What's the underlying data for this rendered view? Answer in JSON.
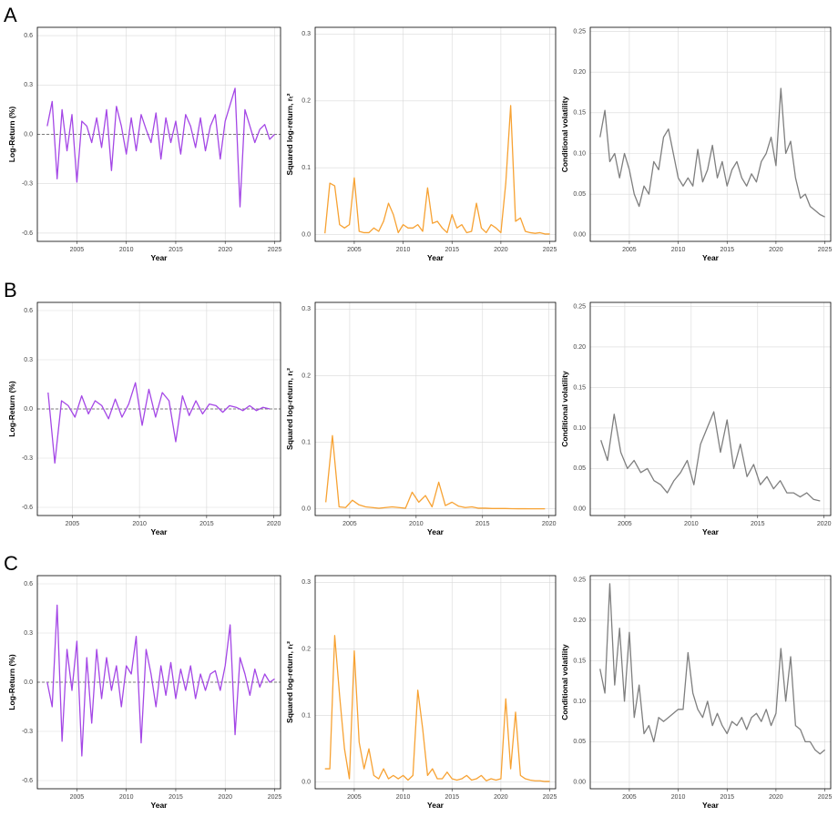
{
  "row_labels": [
    "A",
    "B",
    "C"
  ],
  "chart_data": [
    {
      "type": "line",
      "x_label": "Year",
      "y_label": "Log-Return (%)",
      "reference_line": 0,
      "grid": true,
      "xlim": [
        2001,
        2025.6
      ],
      "xticks": [
        2005,
        2010,
        2015,
        2020,
        2025
      ],
      "ylim": [
        -0.65,
        0.65
      ],
      "yticks": [
        -0.6,
        -0.3,
        {
          "value": 0,
          "label": "0.0"
        },
        0.3,
        0.6
      ],
      "x": [
        2002,
        2002.5,
        2003,
        2003.5,
        2004,
        2004.5,
        2005,
        2005.5,
        2006,
        2006.5,
        2007,
        2007.5,
        2008,
        2008.5,
        2009,
        2009.5,
        2010,
        2010.5,
        2011,
        2011.5,
        2012,
        2012.5,
        2013,
        2013.5,
        2014,
        2014.5,
        2015,
        2015.5,
        2016,
        2016.5,
        2017,
        2017.5,
        2018,
        2018.5,
        2019,
        2019.5,
        2020,
        2020.5,
        2021,
        2021.5,
        2022,
        2022.5,
        2023,
        2023.5,
        2024,
        2024.5,
        2025
      ],
      "series": [
        {
          "color": "#a447e6",
          "values": [
            0.05,
            0.2,
            -0.27,
            0.15,
            -0.1,
            0.12,
            -0.29,
            0.08,
            0.05,
            -0.05,
            0.1,
            -0.08,
            0.15,
            -0.22,
            0.17,
            0.05,
            -0.12,
            0.1,
            -0.1,
            0.12,
            0.03,
            -0.05,
            0.13,
            -0.15,
            0.1,
            -0.05,
            0.08,
            -0.12,
            0.12,
            0.05,
            -0.08,
            0.1,
            -0.1,
            0.05,
            0.12,
            -0.15,
            0.08,
            0.18,
            0.28,
            -0.44,
            0.15,
            0.05,
            -0.05,
            0.03,
            0.06,
            -0.03,
            0
          ]
        }
      ]
    },
    {
      "type": "line",
      "x_label": "Year",
      "y_label": "Squared log-return, rₜ²",
      "grid": true,
      "xlim": [
        2001,
        2025.6
      ],
      "xticks": [
        2005,
        2010,
        2015,
        2020,
        2025
      ],
      "ylim": [
        -0.01,
        0.31
      ],
      "yticks": [
        {
          "value": 0,
          "label": "0.0"
        },
        0.1,
        0.2,
        0.3
      ],
      "x": [
        2002,
        2002.5,
        2003,
        2003.5,
        2004,
        2004.5,
        2005,
        2005.5,
        2006,
        2006.5,
        2007,
        2007.5,
        2008,
        2008.5,
        2009,
        2009.5,
        2010,
        2010.5,
        2011,
        2011.5,
        2012,
        2012.5,
        2013,
        2013.5,
        2014,
        2014.5,
        2015,
        2015.5,
        2016,
        2016.5,
        2017,
        2017.5,
        2018,
        2018.5,
        2019,
        2019.5,
        2020,
        2020.5,
        2021,
        2021.5,
        2022,
        2022.5,
        2023,
        2023.5,
        2024,
        2024.5,
        2025
      ],
      "series": [
        {
          "color": "#f7a233",
          "values": [
            0.002,
            0.077,
            0.073,
            0.015,
            0.01,
            0.015,
            0.085,
            0.005,
            0.003,
            0.003,
            0.01,
            0.005,
            0.02,
            0.047,
            0.03,
            0.003,
            0.015,
            0.01,
            0.01,
            0.015,
            0.005,
            0.07,
            0.017,
            0.02,
            0.01,
            0.003,
            0.03,
            0.01,
            0.015,
            0.003,
            0.005,
            0.047,
            0.01,
            0.003,
            0.015,
            0.01,
            0.003,
            0.077,
            0.193,
            0.02,
            0.025,
            0.005,
            0.003,
            0.002,
            0.003,
            0.001,
            0.001
          ]
        }
      ]
    },
    {
      "type": "line",
      "x_label": "Year",
      "y_label": "Conditional volatility",
      "grid": true,
      "xlim": [
        2001,
        2025.6
      ],
      "xticks": [
        2005,
        2010,
        2015,
        2020,
        2025
      ],
      "ylim": [
        -0.008,
        0.255
      ],
      "yticks": [
        {
          "value": 0,
          "label": "0.00"
        },
        0.05,
        {
          "value": 0.1,
          "label": "0.10"
        },
        0.15,
        {
          "value": 0.2,
          "label": "0.20"
        },
        0.25
      ],
      "x": [
        2002,
        2002.5,
        2003,
        2003.5,
        2004,
        2004.5,
        2005,
        2005.5,
        2006,
        2006.5,
        2007,
        2007.5,
        2008,
        2008.5,
        2009,
        2009.5,
        2010,
        2010.5,
        2011,
        2011.5,
        2012,
        2012.5,
        2013,
        2013.5,
        2014,
        2014.5,
        2015,
        2015.5,
        2016,
        2016.5,
        2017,
        2017.5,
        2018,
        2018.5,
        2019,
        2019.5,
        2020,
        2020.5,
        2021,
        2021.5,
        2022,
        2022.5,
        2023,
        2023.5,
        2024,
        2024.5,
        2025
      ],
      "series": [
        {
          "color": "#7f7f7f",
          "values": [
            0.12,
            0.153,
            0.09,
            0.1,
            0.07,
            0.1,
            0.08,
            0.05,
            0.035,
            0.06,
            0.05,
            0.09,
            0.08,
            0.12,
            0.13,
            0.1,
            0.07,
            0.06,
            0.07,
            0.06,
            0.105,
            0.065,
            0.08,
            0.11,
            0.07,
            0.09,
            0.06,
            0.08,
            0.09,
            0.07,
            0.06,
            0.075,
            0.065,
            0.09,
            0.1,
            0.12,
            0.085,
            0.18,
            0.1,
            0.115,
            0.07,
            0.045,
            0.05,
            0.035,
            0.03,
            0.025,
            0.022
          ]
        }
      ]
    },
    {
      "type": "line",
      "x_label": "Year",
      "y_label": "Log-Return (%)",
      "reference_line": 0,
      "grid": true,
      "xlim": [
        2002.4,
        2020.5
      ],
      "xticks": [
        2005,
        2010,
        2015,
        2020
      ],
      "ylim": [
        -0.65,
        0.65
      ],
      "yticks": [
        -0.6,
        -0.3,
        {
          "value": 0,
          "label": "0.0"
        },
        0.3,
        0.6
      ],
      "x": [
        2003.2,
        2003.7,
        2004.2,
        2004.7,
        2005.2,
        2005.7,
        2006.2,
        2006.7,
        2007.2,
        2007.7,
        2008.2,
        2008.7,
        2009.2,
        2009.7,
        2010.2,
        2010.7,
        2011.2,
        2011.7,
        2012.2,
        2012.7,
        2013.2,
        2013.7,
        2014.2,
        2014.7,
        2015.2,
        2015.7,
        2016.2,
        2016.7,
        2017.2,
        2017.7,
        2018.2,
        2018.7,
        2019.2,
        2019.7
      ],
      "series": [
        {
          "color": "#a447e6",
          "values": [
            0.1,
            -0.33,
            0.05,
            0.02,
            -0.05,
            0.08,
            -0.03,
            0.05,
            0.02,
            -0.06,
            0.06,
            -0.05,
            0.03,
            0.16,
            -0.1,
            0.12,
            -0.05,
            0.1,
            0.05,
            -0.2,
            0.08,
            -0.04,
            0.05,
            -0.03,
            0.03,
            0.02,
            -0.02,
            0.02,
            0.01,
            -0.01,
            0.02,
            -0.01,
            0.01,
            0
          ]
        }
      ]
    },
    {
      "type": "line",
      "x_label": "Year",
      "y_label": "Squared log-return, rₜ²",
      "grid": true,
      "xlim": [
        2002.4,
        2020.5
      ],
      "xticks": [
        2005,
        2010,
        2015,
        2020
      ],
      "ylim": [
        -0.01,
        0.31
      ],
      "yticks": [
        {
          "value": 0,
          "label": "0.0"
        },
        0.1,
        0.2,
        0.3
      ],
      "x": [
        2003.2,
        2003.7,
        2004.2,
        2004.7,
        2005.2,
        2005.7,
        2006.2,
        2006.7,
        2007.2,
        2007.7,
        2008.2,
        2008.7,
        2009.2,
        2009.7,
        2010.2,
        2010.7,
        2011.2,
        2011.7,
        2012.2,
        2012.7,
        2013.2,
        2013.7,
        2014.2,
        2014.7,
        2015.2,
        2015.7,
        2016.2,
        2016.7,
        2017.2,
        2017.7,
        2018.2,
        2018.7,
        2019.2,
        2019.7
      ],
      "series": [
        {
          "color": "#f7a233",
          "values": [
            0.01,
            0.11,
            0.003,
            0.002,
            0.013,
            0.006,
            0.003,
            0.002,
            0.001,
            0.002,
            0.003,
            0.002,
            0.001,
            0.025,
            0.01,
            0.02,
            0.003,
            0.04,
            0.005,
            0.01,
            0.004,
            0.002,
            0.003,
            0.001,
            0.001,
            0.0005,
            0.0005,
            0.0005,
            0.0003,
            0.0002,
            0.0002,
            0.0001,
            0.0001,
            0.0001
          ]
        }
      ]
    },
    {
      "type": "line",
      "x_label": "Year",
      "y_label": "Conditional volatility",
      "grid": true,
      "xlim": [
        2002.4,
        2020.5
      ],
      "xticks": [
        2005,
        2010,
        2015,
        2020
      ],
      "ylim": [
        -0.008,
        0.255
      ],
      "yticks": [
        {
          "value": 0,
          "label": "0.00"
        },
        0.05,
        {
          "value": 0.1,
          "label": "0.10"
        },
        0.15,
        {
          "value": 0.2,
          "label": "0.20"
        },
        0.25
      ],
      "x": [
        2003.2,
        2003.7,
        2004.2,
        2004.7,
        2005.2,
        2005.7,
        2006.2,
        2006.7,
        2007.2,
        2007.7,
        2008.2,
        2008.7,
        2009.2,
        2009.7,
        2010.2,
        2010.7,
        2011.2,
        2011.7,
        2012.2,
        2012.7,
        2013.2,
        2013.7,
        2014.2,
        2014.7,
        2015.2,
        2015.7,
        2016.2,
        2016.7,
        2017.2,
        2017.7,
        2018.2,
        2018.7,
        2019.2,
        2019.7
      ],
      "series": [
        {
          "color": "#7f7f7f",
          "values": [
            0.085,
            0.06,
            0.117,
            0.07,
            0.05,
            0.06,
            0.045,
            0.05,
            0.035,
            0.03,
            0.02,
            0.035,
            0.045,
            0.06,
            0.03,
            0.08,
            0.1,
            0.12,
            0.07,
            0.11,
            0.05,
            0.08,
            0.04,
            0.055,
            0.03,
            0.04,
            0.025,
            0.035,
            0.02,
            0.02,
            0.015,
            0.02,
            0.012,
            0.01
          ]
        }
      ]
    },
    {
      "type": "line",
      "x_label": "Year",
      "y_label": "Log-Return (%)",
      "reference_line": 0,
      "grid": true,
      "xlim": [
        2001,
        2025.6
      ],
      "xticks": [
        2005,
        2010,
        2015,
        2020,
        2025
      ],
      "ylim": [
        -0.65,
        0.65
      ],
      "yticks": [
        -0.6,
        -0.3,
        {
          "value": 0,
          "label": "0.0"
        },
        0.3,
        0.6
      ],
      "x": [
        2002,
        2002.5,
        2003,
        2003.5,
        2004,
        2004.5,
        2005,
        2005.5,
        2006,
        2006.5,
        2007,
        2007.5,
        2008,
        2008.5,
        2009,
        2009.5,
        2010,
        2010.5,
        2011,
        2011.5,
        2012,
        2012.5,
        2013,
        2013.5,
        2014,
        2014.5,
        2015,
        2015.5,
        2016,
        2016.5,
        2017,
        2017.5,
        2018,
        2018.5,
        2019,
        2019.5,
        2020,
        2020.5,
        2021,
        2021.5,
        2022,
        2022.5,
        2023,
        2023.5,
        2024,
        2024.5,
        2025
      ],
      "series": [
        {
          "color": "#a447e6",
          "values": [
            0,
            -0.15,
            0.47,
            -0.36,
            0.2,
            -0.05,
            0.25,
            -0.45,
            0.15,
            -0.25,
            0.2,
            -0.1,
            0.15,
            -0.05,
            0.1,
            -0.15,
            0.1,
            0.05,
            0.28,
            -0.37,
            0.2,
            0.05,
            -0.15,
            0.1,
            -0.08,
            0.12,
            -0.1,
            0.08,
            -0.05,
            0.1,
            -0.1,
            0.05,
            -0.05,
            0.05,
            0.07,
            -0.05,
            0.1,
            0.35,
            -0.32,
            0.15,
            0.05,
            -0.08,
            0.08,
            -0.03,
            0.05,
            0,
            0.02
          ]
        }
      ]
    },
    {
      "type": "line",
      "x_label": "Year",
      "y_label": "Squared log-return, rₜ²",
      "grid": true,
      "xlim": [
        2001,
        2025.6
      ],
      "xticks": [
        2005,
        2010,
        2015,
        2020,
        2025
      ],
      "ylim": [
        -0.01,
        0.31
      ],
      "yticks": [
        {
          "value": 0,
          "label": "0.0"
        },
        0.1,
        0.2,
        0.3
      ],
      "x": [
        2002,
        2002.5,
        2003,
        2003.5,
        2004,
        2004.5,
        2005,
        2005.5,
        2006,
        2006.5,
        2007,
        2007.5,
        2008,
        2008.5,
        2009,
        2009.5,
        2010,
        2010.5,
        2011,
        2011.5,
        2012,
        2012.5,
        2013,
        2013.5,
        2014,
        2014.5,
        2015,
        2015.5,
        2016,
        2016.5,
        2017,
        2017.5,
        2018,
        2018.5,
        2019,
        2019.5,
        2020,
        2020.5,
        2021,
        2021.5,
        2022,
        2022.5,
        2023,
        2023.5,
        2024,
        2024.5,
        2025
      ],
      "series": [
        {
          "color": "#f7a233",
          "values": [
            0.02,
            0.02,
            0.22,
            0.13,
            0.05,
            0.005,
            0.197,
            0.06,
            0.02,
            0.05,
            0.01,
            0.005,
            0.02,
            0.005,
            0.01,
            0.005,
            0.01,
            0.003,
            0.01,
            0.138,
            0.08,
            0.01,
            0.02,
            0.005,
            0.005,
            0.015,
            0.005,
            0.003,
            0.005,
            0.01,
            0.003,
            0.005,
            0.01,
            0.002,
            0.005,
            0.003,
            0.005,
            0.125,
            0.02,
            0.105,
            0.01,
            0.005,
            0.003,
            0.002,
            0.002,
            0.001,
            0.001
          ]
        }
      ]
    },
    {
      "type": "line",
      "x_label": "Year",
      "y_label": "Conditional volatility",
      "grid": true,
      "xlim": [
        2001,
        2025.6
      ],
      "xticks": [
        2005,
        2010,
        2015,
        2020,
        2025
      ],
      "ylim": [
        -0.008,
        0.255
      ],
      "yticks": [
        {
          "value": 0,
          "label": "0.00"
        },
        0.05,
        {
          "value": 0.1,
          "label": "0.10"
        },
        0.15,
        {
          "value": 0.2,
          "label": "0.20"
        },
        0.25
      ],
      "x": [
        2002,
        2002.5,
        2003,
        2003.5,
        2004,
        2004.5,
        2005,
        2005.5,
        2006,
        2006.5,
        2007,
        2007.5,
        2008,
        2008.5,
        2009,
        2009.5,
        2010,
        2010.5,
        2011,
        2011.5,
        2012,
        2012.5,
        2013,
        2013.5,
        2014,
        2014.5,
        2015,
        2015.5,
        2016,
        2016.5,
        2017,
        2017.5,
        2018,
        2018.5,
        2019,
        2019.5,
        2020,
        2020.5,
        2021,
        2021.5,
        2022,
        2022.5,
        2023,
        2023.5,
        2024,
        2024.5,
        2025
      ],
      "series": [
        {
          "color": "#7f7f7f",
          "values": [
            0.14,
            0.11,
            0.245,
            0.12,
            0.19,
            0.1,
            0.185,
            0.08,
            0.12,
            0.06,
            0.07,
            0.05,
            0.08,
            0.075,
            0.08,
            0.085,
            0.09,
            0.09,
            0.16,
            0.11,
            0.09,
            0.08,
            0.1,
            0.07,
            0.085,
            0.07,
            0.06,
            0.075,
            0.07,
            0.08,
            0.065,
            0.08,
            0.085,
            0.075,
            0.09,
            0.07,
            0.085,
            0.165,
            0.1,
            0.155,
            0.07,
            0.065,
            0.05,
            0.05,
            0.04,
            0.035,
            0.04
          ]
        }
      ]
    }
  ]
}
